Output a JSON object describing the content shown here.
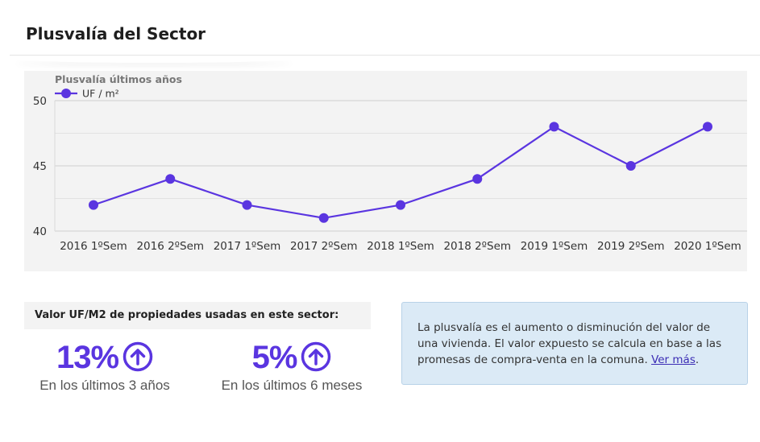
{
  "header": {
    "title": "Plusvalía del Sector"
  },
  "chart_data": {
    "type": "line",
    "title": "Plusvalía últimos años",
    "categories": [
      "2016 1ºSem",
      "2016 2ºSem",
      "2017 1ºSem",
      "2017 2ºSem",
      "2018 1ºSem",
      "2018 2ºSem",
      "2019 1ºSem",
      "2019 2ºSem",
      "2020 1ºSem"
    ],
    "series": [
      {
        "name": "UF / m²",
        "values": [
          42,
          44,
          42,
          41,
          42,
          44,
          48,
          45,
          48
        ],
        "color": "#5a35e0"
      }
    ],
    "ylim": [
      40,
      50
    ],
    "yticks": [
      "40",
      "45",
      "50"
    ],
    "grid": true,
    "legend": "top-left"
  },
  "stats": {
    "heading": "Valor UF/M2 de propiedades usadas en este sector:",
    "items": [
      {
        "value": "13%",
        "caption": "En los últimos 3 años",
        "icon": "arrow-up-circle-icon"
      },
      {
        "value": "5%",
        "caption": "En los últimos 6 meses",
        "icon": "arrow-up-circle-icon"
      }
    ]
  },
  "info": {
    "text": "La plusvalía es el aumento o disminución del valor de una vivienda. El valor expuesto se calcula en base a las promesas de compra-venta en la comuna.",
    "link": "Ver más",
    "suffix": "."
  },
  "colors": {
    "accent": "#5a35e0",
    "info_bg": "#dbeaf6"
  }
}
